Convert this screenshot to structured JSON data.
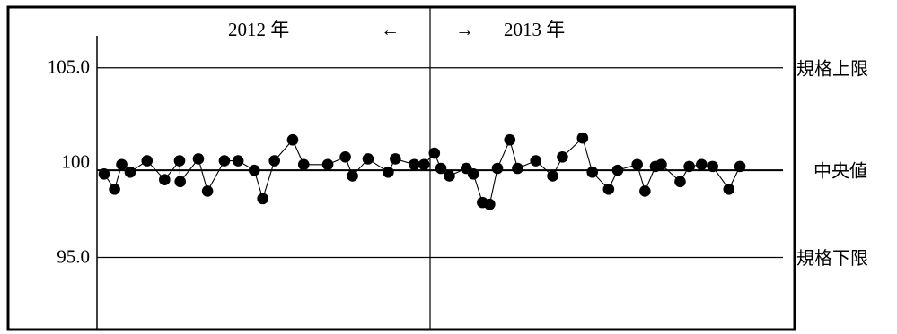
{
  "chart_data": {
    "type": "line",
    "title": "",
    "xlabel": "",
    "ylabel": "",
    "ylim": [
      91.2,
      108.2
    ],
    "y_ticks": [
      {
        "value": 105.0,
        "label": "105.0"
      },
      {
        "value": 100,
        "label": "100"
      },
      {
        "value": 95.0,
        "label": "95.0"
      }
    ],
    "reference_lines": [
      {
        "name": "upper_limit",
        "value": 105.0,
        "label": "規格上限"
      },
      {
        "name": "center",
        "value": 99.6,
        "label": "中央値"
      },
      {
        "name": "lower_limit",
        "value": 95.0,
        "label": "規格下限"
      }
    ],
    "periods": [
      {
        "label": "2012 年",
        "arrow": "←"
      },
      {
        "label": "2013 年",
        "arrow": "→"
      }
    ],
    "period_split_index": 28,
    "grid": false,
    "legend": "none",
    "series": [
      {
        "values": [
          99.4,
          98.6,
          99.9,
          99.5,
          100.1,
          99.1,
          100.1,
          99.0,
          100.2,
          98.5,
          100.1,
          100.1,
          99.6,
          98.1,
          100.1,
          101.2,
          99.9,
          99.9,
          100.3,
          99.3,
          100.2,
          99.5,
          100.2,
          99.9,
          99.9,
          100.5,
          99.7,
          99.3,
          99.7,
          99.4,
          97.9,
          97.8,
          99.7,
          101.2,
          99.7,
          100.1,
          99.3,
          100.3,
          101.3,
          99.5,
          98.6,
          99.6,
          99.9,
          98.5,
          99.8,
          99.9,
          99.0,
          99.8,
          99.9,
          99.8,
          98.6,
          99.8
        ],
        "x_rel": [
          0.0,
          0.016,
          0.027,
          0.04,
          0.066,
          0.093,
          0.116,
          0.117,
          0.145,
          0.159,
          0.185,
          0.206,
          0.231,
          0.244,
          0.262,
          0.29,
          0.307,
          0.344,
          0.371,
          0.382,
          0.406,
          0.437,
          0.448,
          0.477,
          0.492,
          0.508,
          0.518,
          0.531,
          0.557,
          0.568,
          0.582,
          0.593,
          0.605,
          0.624,
          0.636,
          0.664,
          0.69,
          0.705,
          0.736,
          0.751,
          0.776,
          0.79,
          0.82,
          0.832,
          0.848,
          0.857,
          0.886,
          0.9,
          0.919,
          0.936,
          0.961,
          0.978
        ]
      }
    ]
  }
}
